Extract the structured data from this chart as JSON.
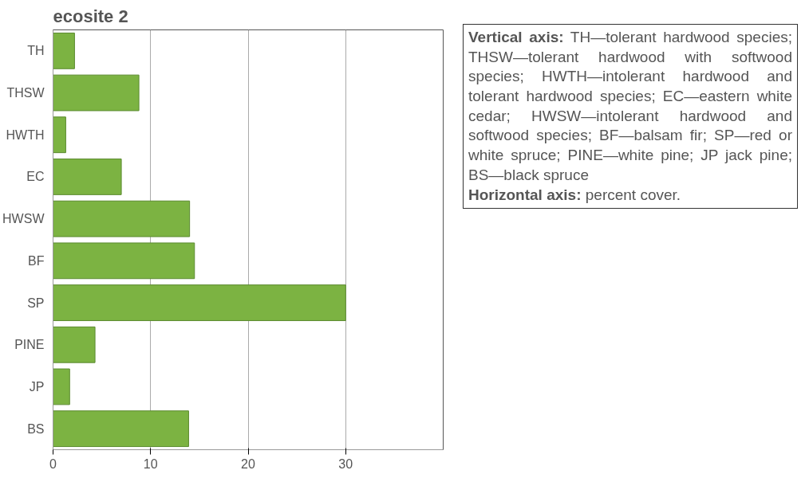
{
  "chart_data": {
    "type": "bar",
    "orientation": "horizontal",
    "title": "ecosite 2",
    "categories": [
      "TH",
      "THSW",
      "HWTH",
      "EC",
      "HWSW",
      "BF",
      "SP",
      "PINE",
      "JP",
      "BS"
    ],
    "values": [
      2.2,
      8.8,
      1.3,
      7.0,
      14.0,
      14.5,
      30,
      4.3,
      1.7,
      13.9
    ],
    "color": "#7cb342",
    "xlim": [
      0,
      40
    ],
    "xticks": [
      0,
      10,
      20,
      30
    ],
    "grid": "x",
    "annotations": [
      "Vertical axis: TH—tolerant hardwood species; THSW—tolerant hardwood with softwood species; HWTH—intolerant hardwood and tolerant hardwood species; EC—eastern white cedar; HWSW—intolerant hardwood and softwood species; BF—balsam fir; SP—red or white spruce; PINE—white pine; JP jack pine; BS—black spruce",
      "Horizontal axis: percent cover."
    ]
  }
}
